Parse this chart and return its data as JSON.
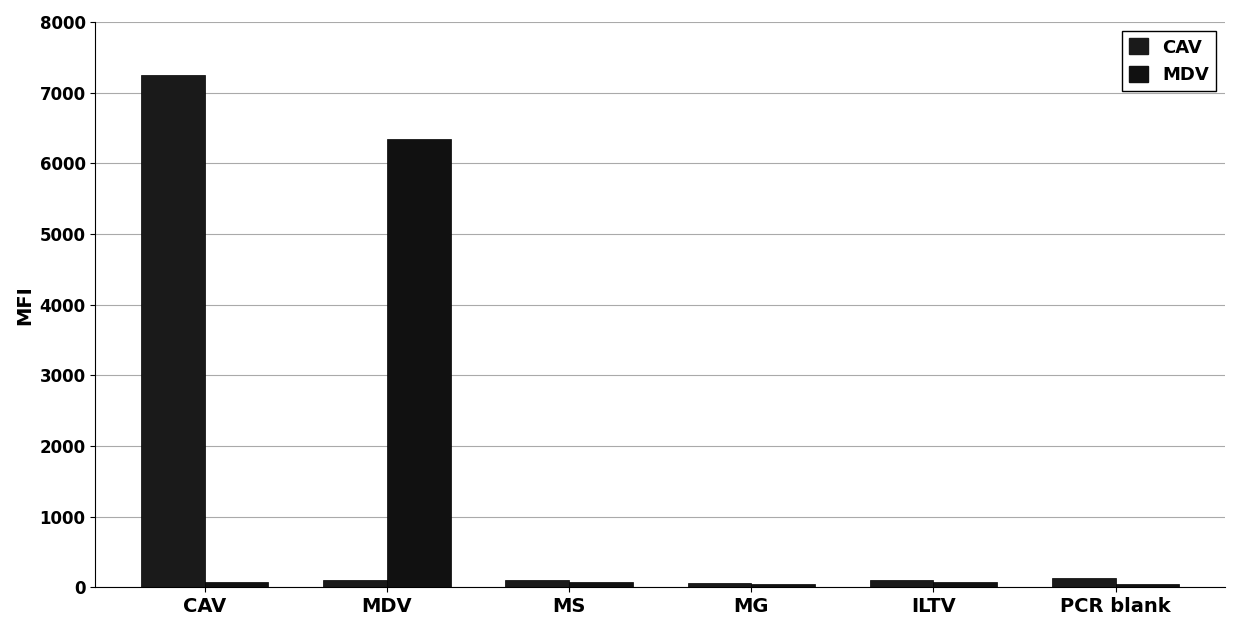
{
  "categories": [
    "CAV",
    "MDV",
    "MS",
    "MG",
    "ILTV",
    "PCR blank"
  ],
  "series": [
    {
      "name": "CAV",
      "color": "#1a1a1a",
      "values": [
        7250,
        100,
        110,
        60,
        100,
        130
      ]
    },
    {
      "name": "MDV",
      "color": "#111111",
      "values": [
        80,
        6350,
        70,
        50,
        70,
        50
      ]
    }
  ],
  "ylabel": "MFI",
  "ylim": [
    0,
    8000
  ],
  "yticks": [
    0,
    1000,
    2000,
    3000,
    4000,
    5000,
    6000,
    7000,
    8000
  ],
  "bar_width": 0.35,
  "background_color": "#ffffff",
  "grid_color": "#aaaaaa",
  "legend_loc": "upper right",
  "bar_edge_color": "#000000",
  "figsize": [
    12.4,
    6.31
  ],
  "dpi": 100
}
